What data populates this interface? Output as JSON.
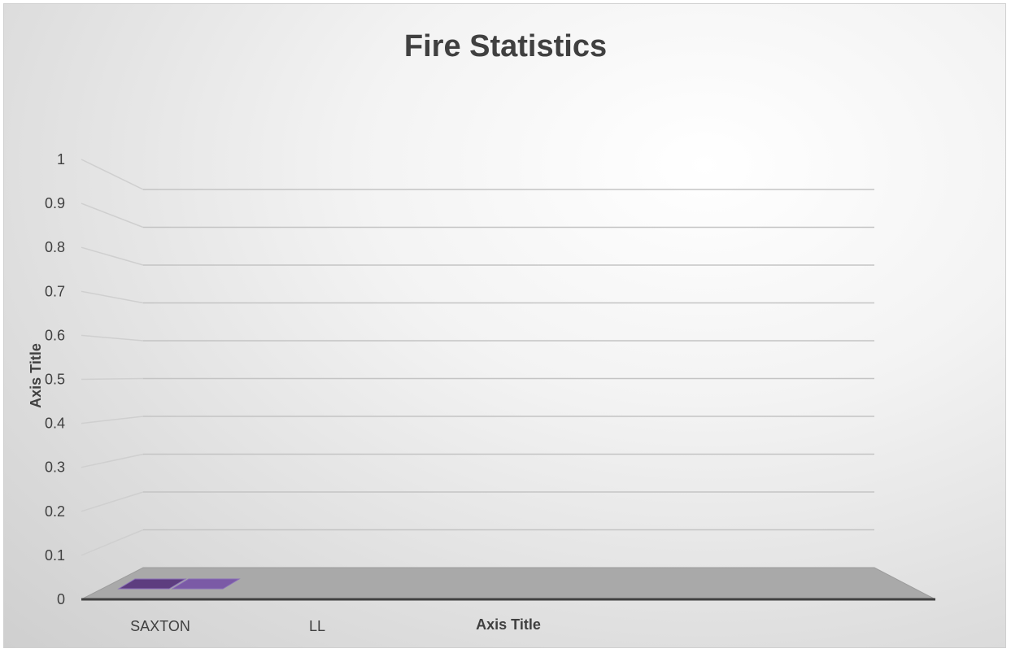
{
  "chart_data": {
    "type": "bar",
    "title": "Fire Statistics",
    "xlabel": "Axis Title",
    "ylabel": "Axis Title",
    "categories": [
      "SAXTON",
      "LL"
    ],
    "series": [
      {
        "values": [
          0,
          0
        ],
        "color": "#6b4c9a"
      }
    ],
    "ylim": [
      0,
      1
    ],
    "yticks": [
      "0",
      "0.1",
      "0.2",
      "0.3",
      "0.4",
      "0.5",
      "0.6",
      "0.7",
      "0.8",
      "0.9",
      "1"
    ],
    "grid": true,
    "style": "3d"
  }
}
